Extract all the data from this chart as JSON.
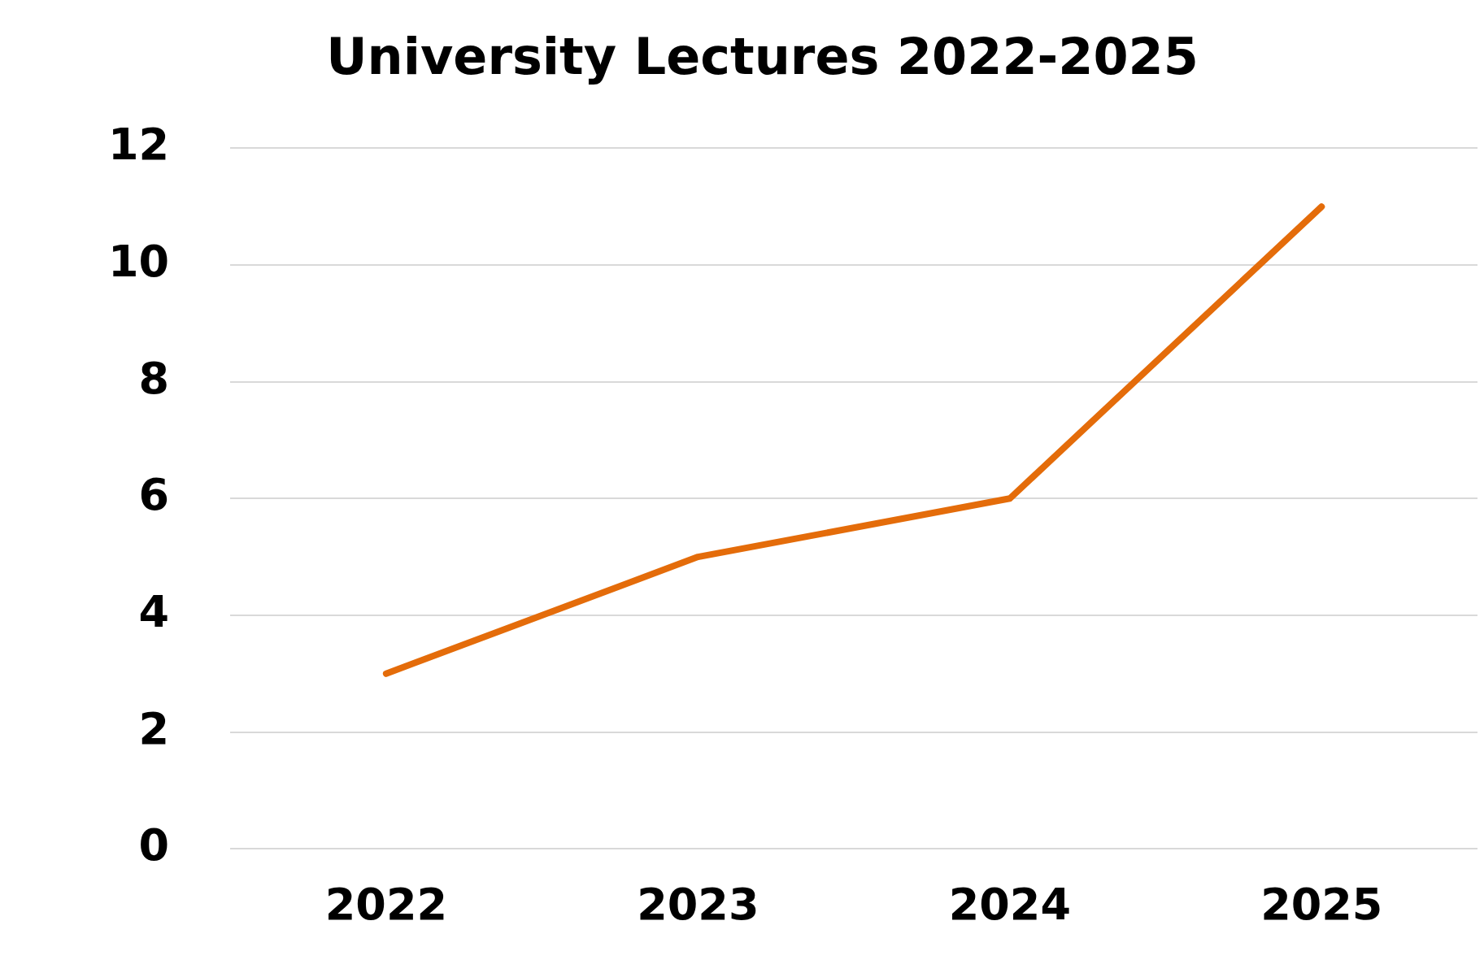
{
  "chart_data": {
    "type": "line",
    "title": "University Lectures 2022-2025",
    "categories": [
      "2022",
      "2023",
      "2024",
      "2025"
    ],
    "series": [
      {
        "color": "#e46c0a",
        "values": [
          3,
          5,
          6,
          11
        ]
      }
    ],
    "ylim": [
      0,
      12
    ],
    "yticks": [
      0,
      2,
      4,
      6,
      8,
      10,
      12
    ],
    "grid": "y",
    "legend": false,
    "marker": "none",
    "line_style": "solid"
  }
}
